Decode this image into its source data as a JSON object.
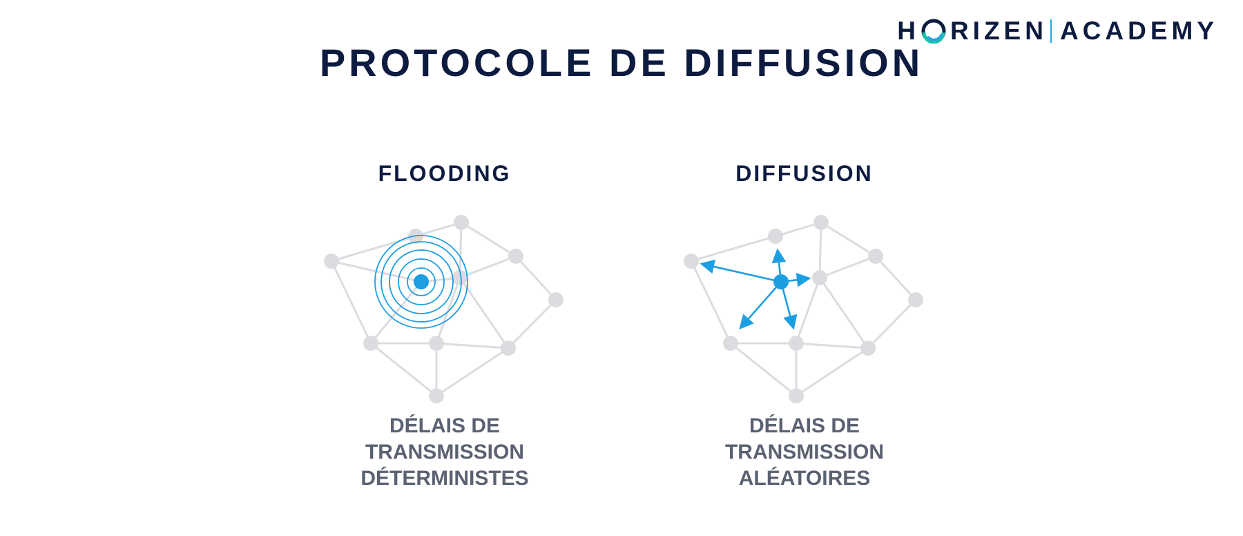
{
  "header": {
    "title": "PROTOCOLE DE DIFFUSION"
  },
  "brand": {
    "name_part1": "H",
    "name_part2": "RIZEN",
    "name_part3": "ACADEMY"
  },
  "panels": [
    {
      "title": "FLOODING",
      "caption_lines": [
        "DÉLAIS DE",
        "TRANSMISSION",
        "DÉTERMINISTES"
      ]
    },
    {
      "title": "DIFFUSION",
      "caption_lines": [
        "DÉLAIS DE",
        "TRANSMISSION",
        "ALÉATOIRES"
      ]
    }
  ],
  "colors": {
    "accent": "#1c9ee3",
    "heading": "#0d1b40",
    "caption": "#5a6171",
    "network_gray": "#dcdbe0"
  }
}
